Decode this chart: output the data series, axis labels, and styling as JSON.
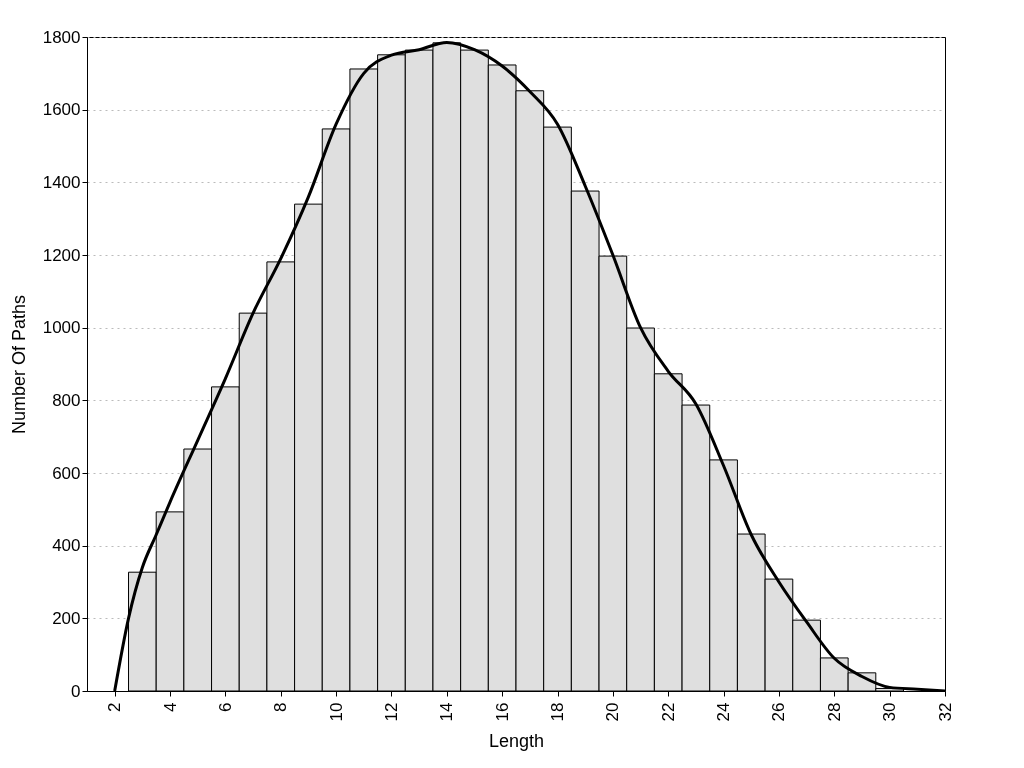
{
  "chart_data": {
    "type": "histogram",
    "xlabel": "Length",
    "ylabel": "Number Of Paths",
    "bins": [
      2.5,
      3.5,
      4.5,
      5.5,
      6.5,
      7.5,
      8.5,
      9.5,
      10.5,
      11.5,
      12.5,
      13.5,
      14.5,
      15.5,
      16.5,
      17.5,
      18.5,
      19.5,
      20.5,
      21.5,
      22.5,
      23.5,
      24.5,
      25.5,
      26.5,
      27.5,
      28.5,
      29.5,
      30.5,
      31.5
    ],
    "values": [
      327,
      493,
      666,
      837,
      1040,
      1181,
      1340,
      1547,
      1712,
      1751,
      1764,
      1784,
      1764,
      1723,
      1652,
      1552,
      1376,
      1197,
      999,
      873,
      787,
      636,
      432,
      308,
      195,
      91,
      50,
      7,
      null
    ],
    "color": "#dfdfdf",
    "series": [
      {
        "type": "line",
        "color": "#000000",
        "x": [
          2,
          2.5,
          3,
          3.5,
          4,
          5,
          6,
          7,
          8,
          9,
          10,
          11,
          12,
          13,
          14,
          15,
          16,
          17,
          18,
          19,
          20,
          21,
          22,
          23,
          24,
          25,
          26,
          27,
          28,
          29,
          30,
          31,
          32
        ],
        "values": [
          0,
          200,
          340,
          430,
          520,
          690,
          860,
          1040,
          1190,
          1360,
          1560,
          1700,
          1750,
          1765,
          1785,
          1765,
          1720,
          1650,
          1560,
          1390,
          1200,
          1000,
          880,
          790,
          620,
          430,
          300,
          190,
          90,
          40,
          10,
          5,
          0
        ]
      }
    ],
    "xlim": [
      1,
      32
    ],
    "xticks": [
      2,
      4,
      6,
      8,
      10,
      12,
      14,
      16,
      18,
      20,
      22,
      24,
      26,
      28,
      30,
      32
    ],
    "ylim": [
      0,
      1800
    ],
    "yticks": [
      0,
      200,
      400,
      600,
      800,
      1000,
      1200,
      1400,
      1600,
      1800
    ],
    "grid": "y"
  }
}
